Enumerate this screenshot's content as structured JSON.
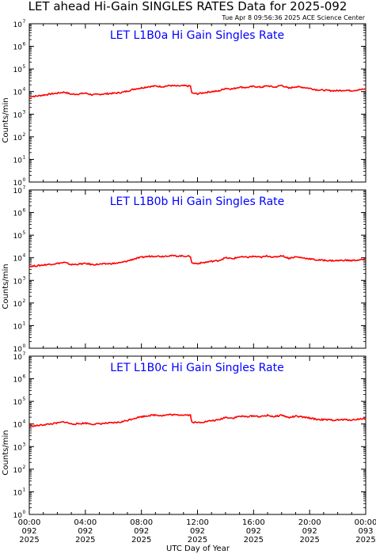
{
  "header": {
    "title": "LET ahead Hi-Gain SINGLES RATES Data for 2025-092",
    "timestamp": "Tue Apr  8 09:56:36 2025 ACE Science Center"
  },
  "chart_data": [
    {
      "type": "line",
      "title": "LET L1B0a Hi Gain Singles Rate",
      "ylabel": "Counts/min",
      "yscale": "log",
      "ylim": [
        1,
        10000000
      ],
      "ytick_exponents": [
        "0",
        "1",
        "2",
        "3",
        "4",
        "5",
        "6",
        "7"
      ],
      "xlim_hours": [
        0,
        24
      ],
      "series": [
        {
          "color": "#ff0000",
          "x": [
            0,
            0.5,
            1,
            1.5,
            2,
            2.5,
            3,
            3.5,
            4,
            4.5,
            5,
            5.5,
            6,
            6.5,
            7,
            7.5,
            8,
            8.5,
            9,
            9.5,
            10,
            10.5,
            11,
            11.5,
            11.6,
            12,
            12.5,
            13,
            13.5,
            14,
            14.5,
            15,
            15.5,
            16,
            16.5,
            17,
            17.5,
            18,
            18.5,
            19,
            19.5,
            20,
            20.5,
            21,
            21.5,
            22,
            22.5,
            23,
            23.5,
            24
          ],
          "y": [
            6000,
            6300,
            7000,
            7800,
            8500,
            9500,
            7600,
            7800,
            8500,
            7200,
            7600,
            8000,
            8400,
            9000,
            10500,
            13000,
            14500,
            16500,
            17500,
            16500,
            18500,
            17500,
            18000,
            17500,
            8500,
            8000,
            9000,
            10000,
            10500,
            14000,
            13000,
            16000,
            15000,
            17000,
            15500,
            18000,
            15500,
            19000,
            14000,
            16500,
            15500,
            14000,
            12000,
            11500,
            11000,
            11000,
            11500,
            11000,
            12000,
            13000
          ]
        }
      ]
    },
    {
      "type": "line",
      "title": "LET L1B0b Hi Gain Singles Rate",
      "ylabel": "Counts/min",
      "yscale": "log",
      "ylim": [
        1,
        10000000
      ],
      "ytick_exponents": [
        "0",
        "1",
        "2",
        "3",
        "4",
        "5",
        "6",
        "7"
      ],
      "xlim_hours": [
        0,
        24
      ],
      "series": [
        {
          "color": "#ff0000",
          "x": [
            0,
            0.5,
            1,
            1.5,
            2,
            2.5,
            3,
            3.5,
            4,
            4.5,
            5,
            5.5,
            6,
            6.5,
            7,
            7.5,
            8,
            8.5,
            9,
            9.5,
            10,
            10.5,
            11,
            11.5,
            11.6,
            12,
            12.5,
            13,
            13.5,
            14,
            14.5,
            15,
            15.5,
            16,
            16.5,
            17,
            17.5,
            18,
            18.5,
            19,
            19.5,
            20,
            20.5,
            21,
            21.5,
            22,
            22.5,
            23,
            23.5,
            24
          ],
          "y": [
            4200,
            4400,
            4800,
            5200,
            5600,
            6200,
            5000,
            5200,
            5600,
            5000,
            5200,
            5400,
            5600,
            6000,
            7200,
            9000,
            10500,
            11500,
            12000,
            11500,
            12500,
            12000,
            12000,
            11500,
            5800,
            5600,
            6200,
            7000,
            7500,
            10000,
            9000,
            11000,
            10500,
            11500,
            10500,
            12000,
            10500,
            12500,
            9500,
            11000,
            10000,
            9000,
            8000,
            7800,
            7500,
            7500,
            7800,
            7500,
            8000,
            8500
          ]
        }
      ]
    },
    {
      "type": "line",
      "title": "LET L1B0c Hi Gain Singles Rate",
      "ylabel": "Counts/min",
      "yscale": "log",
      "ylim": [
        1,
        10000000
      ],
      "ytick_exponents": [
        "0",
        "1",
        "2",
        "3",
        "4",
        "5",
        "6",
        "7"
      ],
      "xlim_hours": [
        0,
        24
      ],
      "series": [
        {
          "color": "#ff0000",
          "x": [
            0,
            0.5,
            1,
            1.5,
            2,
            2.5,
            3,
            3.5,
            4,
            4.5,
            5,
            5.5,
            6,
            6.5,
            7,
            7.5,
            8,
            8.5,
            9,
            9.5,
            10,
            10.5,
            11,
            11.5,
            11.6,
            12,
            12.5,
            13,
            13.5,
            14,
            14.5,
            15,
            15.5,
            16,
            16.5,
            17,
            17.5,
            18,
            18.5,
            19,
            19.5,
            20,
            20.5,
            21,
            21.5,
            22,
            22.5,
            23,
            23.5,
            24
          ],
          "y": [
            8000,
            8400,
            9200,
            10000,
            11000,
            12500,
            10000,
            10200,
            11000,
            9800,
            10200,
            10800,
            11200,
            12000,
            14500,
            18000,
            21000,
            23500,
            25000,
            23500,
            26000,
            25000,
            25500,
            24500,
            12000,
            11500,
            12500,
            14000,
            15000,
            20000,
            18000,
            22000,
            21000,
            23000,
            21000,
            24000,
            21000,
            25000,
            19000,
            22000,
            20000,
            18500,
            16000,
            15500,
            15000,
            15000,
            15500,
            15000,
            16500,
            17500
          ]
        }
      ]
    }
  ],
  "xaxis": {
    "tick_labels": [
      {
        "time": "00:00",
        "doy": "092",
        "year": "2025"
      },
      {
        "time": "04:00",
        "doy": "092",
        "year": "2025"
      },
      {
        "time": "08:00",
        "doy": "092",
        "year": "2025"
      },
      {
        "time": "12:00",
        "doy": "092",
        "year": "2025"
      },
      {
        "time": "16:00",
        "doy": "092",
        "year": "2025"
      },
      {
        "time": "20:00",
        "doy": "092",
        "year": "2025"
      },
      {
        "time": "00:00",
        "doy": "093",
        "year": "2025"
      }
    ],
    "label": "UTC Day of Year"
  }
}
